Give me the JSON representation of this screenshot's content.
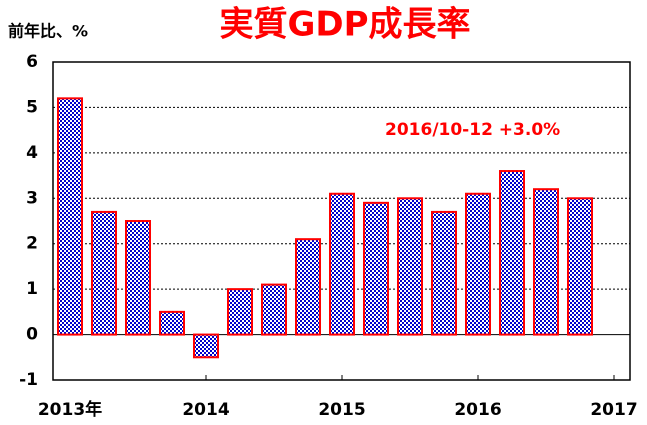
{
  "chart_data": {
    "type": "bar",
    "title": "実質GDP成長率",
    "y_axis_label": "前年比、%",
    "annotation": "2016/10-12 +3.0%",
    "categories": [
      "2013年",
      null,
      null,
      null,
      "2014",
      null,
      null,
      null,
      "2015",
      null,
      null,
      null,
      "2016",
      null,
      null,
      null,
      "2017"
    ],
    "values": [
      5.2,
      2.7,
      2.5,
      0.5,
      -0.5,
      1.0,
      1.1,
      2.1,
      3.1,
      2.9,
      3.0,
      2.7,
      3.1,
      3.6,
      3.2,
      3.0,
      null
    ],
    "color": "#0000cc",
    "edge_color": "#ff0000",
    "ylim": [
      -1,
      6
    ],
    "yticks": [
      -1,
      0,
      1,
      2,
      3,
      4,
      5,
      6
    ],
    "grid": true
  }
}
